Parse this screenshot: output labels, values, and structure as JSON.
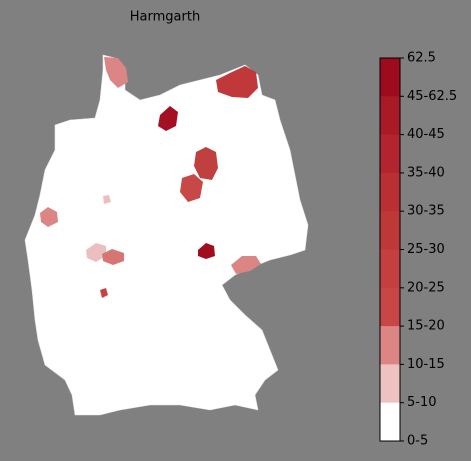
{
  "title": "Harmgarth",
  "legend": {
    "labels": [
      "62.5",
      "45-62.5",
      "40-45",
      "35-40",
      "30-35",
      "25-30",
      "20-25",
      "15-20",
      "10-15",
      "5-10",
      "0-5"
    ],
    "colors": [
      "#9e0b1e",
      "#a91a27",
      "#b22530",
      "#b92f34",
      "#be3838",
      "#c43f3f",
      "#c84646",
      "#dc8585",
      "#efc2c2",
      "#ffffff"
    ]
  }
}
